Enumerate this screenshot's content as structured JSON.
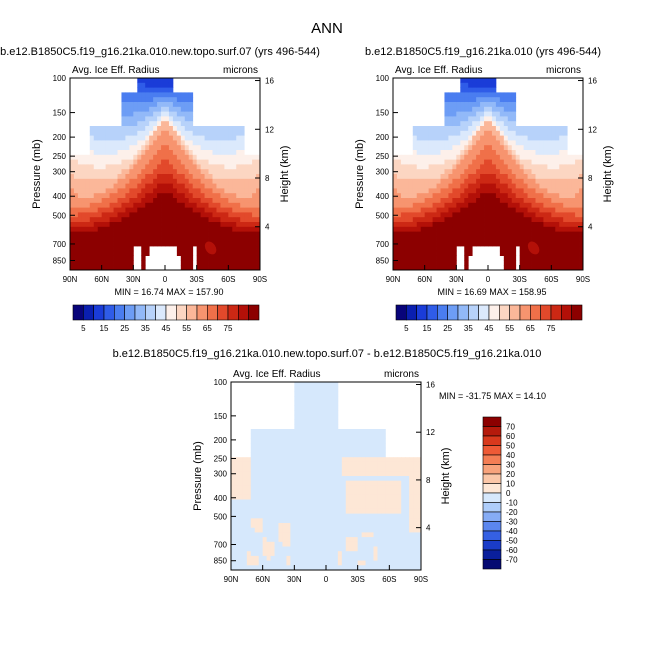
{
  "page_title": "ANN",
  "chart_data": [
    {
      "type": "heatmap",
      "title": "b.e12.B1850C5.f19_g16.21ka.010.new.topo.surf.07 (yrs 496-544)",
      "field_label": "Avg. Ice Eff. Radius",
      "units": "microns",
      "ylabel": "Pressure (mb)",
      "ylabel_right": "Height (km)",
      "x_ticks": [
        "90N",
        "60N",
        "30N",
        "0",
        "30S",
        "60S",
        "90S"
      ],
      "y_ticks": [
        "100",
        "150",
        "200",
        "250",
        "300",
        "400",
        "500",
        "700",
        "850"
      ],
      "y_ticks_right": [
        "16",
        "12",
        "8",
        "4"
      ],
      "stats": "MIN = 16.74   MAX = 157.90",
      "min": 16.74,
      "max": 157.9
    },
    {
      "type": "heatmap",
      "title": "b.e12.B1850C5.f19_g16.21ka.010 (yrs 496-544)",
      "field_label": "Avg. Ice Eff. Radius",
      "units": "microns",
      "ylabel": "Pressure (mb)",
      "ylabel_right": "Height (km)",
      "x_ticks": [
        "90N",
        "60N",
        "30N",
        "0",
        "30S",
        "60S",
        "90S"
      ],
      "y_ticks": [
        "100",
        "150",
        "200",
        "250",
        "300",
        "400",
        "500",
        "700",
        "850"
      ],
      "y_ticks_right": [
        "16",
        "12",
        "8",
        "4"
      ],
      "stats": "MIN = 16.69   MAX = 158.95",
      "min": 16.69,
      "max": 158.95
    },
    {
      "type": "heatmap",
      "title": "b.e12.B1850C5.f19_g16.21ka.010.new.topo.surf.07 - b.e12.B1850C5.f19_g16.21ka.010",
      "field_label": "Avg. Ice Eff. Radius",
      "units": "microns",
      "ylabel": "Pressure (mb)",
      "ylabel_right": "Height (km)",
      "x_ticks": [
        "90N",
        "60N",
        "30N",
        "0",
        "30S",
        "60S",
        "90S"
      ],
      "y_ticks": [
        "100",
        "150",
        "200",
        "250",
        "300",
        "400",
        "500",
        "700",
        "850"
      ],
      "y_ticks_right": [
        "16",
        "12",
        "8",
        "4"
      ],
      "stats": "MIN = -31.75   MAX =  14.10",
      "min": -31.75,
      "max": 14.1
    }
  ],
  "colorbar_main": {
    "labels": [
      "5",
      "15",
      "25",
      "35",
      "45",
      "55",
      "65",
      "75"
    ],
    "colors": [
      "#08047a",
      "#0a1fb0",
      "#1a3cd8",
      "#2f5ce8",
      "#4a7df0",
      "#6d9df5",
      "#92b9f8",
      "#b7d2fa",
      "#dbe9fc",
      "#fdf0ea",
      "#fcd6c2",
      "#fbb799",
      "#f7946f",
      "#f07049",
      "#e2492b",
      "#cc2814",
      "#b31008",
      "#8c0000"
    ]
  },
  "colorbar_diff": {
    "labels": [
      "70",
      "60",
      "50",
      "40",
      "30",
      "20",
      "10",
      "0",
      "-10",
      "-20",
      "-30",
      "-40",
      "-50",
      "-60",
      "-70"
    ],
    "colors": [
      "#8c0000",
      "#b51a0c",
      "#d8391d",
      "#ee5a36",
      "#f47e55",
      "#f8a37c",
      "#fbc7a8",
      "#fde7d6",
      "#d6e8fc",
      "#aecdfa",
      "#86acf5",
      "#5b86ee",
      "#3560e3",
      "#1a3cc8",
      "#0a1f9c",
      "#050a72"
    ]
  }
}
